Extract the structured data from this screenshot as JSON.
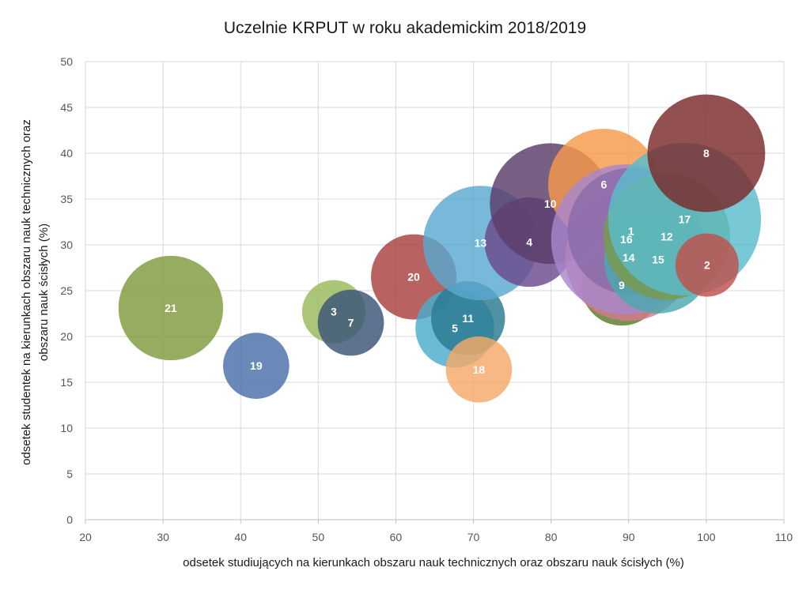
{
  "chart_data": {
    "type": "scatter",
    "subtype": "bubble",
    "title": "Uczelnie KRPUT w roku akademickim 2018/2019",
    "xlabel": "odsetek studiujących na kierunkach obszaru nauk technicznych oraz obszaru nauk ścisłych (%)",
    "ylabel_lines": [
      "odsetek studentek na kierunkach obszaru nauk technicznych oraz",
      "obszaru  nauk ścisłych (%)"
    ],
    "xlim": [
      20,
      110
    ],
    "ylim": [
      0,
      50
    ],
    "xticks": [
      20,
      30,
      40,
      50,
      60,
      70,
      80,
      90,
      100,
      110
    ],
    "yticks": [
      0,
      5,
      10,
      15,
      20,
      25,
      30,
      35,
      40,
      45,
      50
    ],
    "grid": true,
    "legend": "none",
    "points": [
      {
        "label": "21",
        "x": 31,
        "y": 23.1,
        "size": 1.5,
        "color": "#7f9a3a"
      },
      {
        "label": "19",
        "x": 42,
        "y": 16.8,
        "size": 0.6,
        "color": "#4a6fa8"
      },
      {
        "label": "3",
        "x": 52,
        "y": 22.7,
        "size": 0.55,
        "color": "#9ab95a"
      },
      {
        "label": "7",
        "x": 54.2,
        "y": 21.5,
        "size": 0.6,
        "color": "#3a5478"
      },
      {
        "label": "20",
        "x": 62.3,
        "y": 26.5,
        "size": 1.0,
        "color": "#a84040"
      },
      {
        "label": "5",
        "x": 67.6,
        "y": 20.9,
        "size": 0.85,
        "color": "#4aaccc"
      },
      {
        "label": "11",
        "x": 69.3,
        "y": 22.0,
        "size": 0.75,
        "color": "#2a7a90"
      },
      {
        "label": "18",
        "x": 70.7,
        "y": 16.4,
        "size": 0.6,
        "color": "#f5a868"
      },
      {
        "label": "13",
        "x": 70.9,
        "y": 30.2,
        "size": 1.8,
        "color": "#5aa8d0"
      },
      {
        "label": "4",
        "x": 77.2,
        "y": 30.3,
        "size": 1.1,
        "color": "#6a4a8c"
      },
      {
        "label": "10",
        "x": 79.9,
        "y": 34.5,
        "size": 2.0,
        "color": "#5a3d6a"
      },
      {
        "label": "6",
        "x": 86.8,
        "y": 36.6,
        "size": 1.7,
        "color": "#f59a4a"
      },
      {
        "label": "9",
        "x": 89.1,
        "y": 25.6,
        "size": 0.9,
        "color": "#5a7a2a"
      },
      {
        "label": "14",
        "x": 90.0,
        "y": 28.6,
        "size": 2.2,
        "color": "#d47a8a"
      },
      {
        "label": "16",
        "x": 89.7,
        "y": 30.6,
        "size": 3.1,
        "color": "#a888cc"
      },
      {
        "label": "1",
        "x": 90.3,
        "y": 31.5,
        "size": 2.2,
        "color": "#8a6aaa"
      },
      {
        "label": "15",
        "x": 93.8,
        "y": 28.4,
        "size": 1.6,
        "color": "#4aa8b0"
      },
      {
        "label": "12",
        "x": 94.9,
        "y": 30.9,
        "size": 2.2,
        "color": "#7a9a4a"
      },
      {
        "label": "17",
        "x": 97.2,
        "y": 32.8,
        "size": 3.2,
        "color": "#5abccc"
      },
      {
        "label": "2",
        "x": 100.1,
        "y": 27.8,
        "size": 0.55,
        "color": "#c0504d"
      },
      {
        "label": "8",
        "x": 100.0,
        "y": 40.0,
        "size": 1.9,
        "color": "#7a2a2a"
      }
    ]
  }
}
